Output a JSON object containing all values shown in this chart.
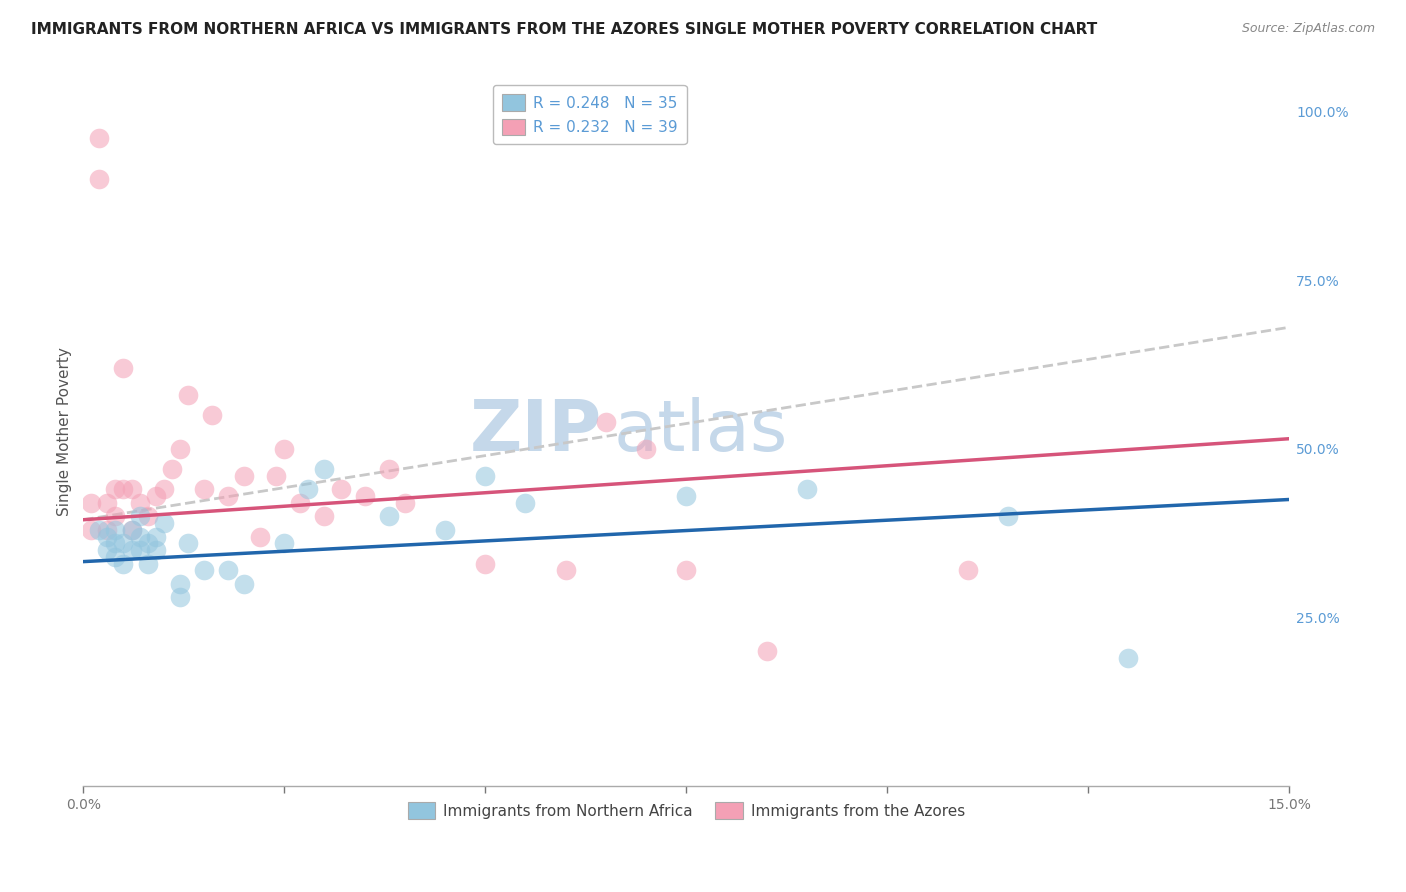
{
  "title": "IMMIGRANTS FROM NORTHERN AFRICA VS IMMIGRANTS FROM THE AZORES SINGLE MOTHER POVERTY CORRELATION CHART",
  "source": "Source: ZipAtlas.com",
  "ylabel": "Single Mother Poverty",
  "xlabel": "",
  "watermark_text": "ZIP",
  "watermark_text2": "atlas",
  "legend_blue_r": "R = 0.248",
  "legend_blue_n": "N = 35",
  "legend_pink_r": "R = 0.232",
  "legend_pink_n": "N = 39",
  "xlim": [
    0.0,
    0.15
  ],
  "ylim": [
    0.0,
    1.05
  ],
  "blue_color": "#92c5de",
  "pink_color": "#f4a0b5",
  "blue_line_color": "#2166ac",
  "pink_line_color": "#d6547a",
  "dash_line_color": "#c8c8c8",
  "background_color": "#ffffff",
  "grid_color": "#d0d0d0",
  "blue_points_x": [
    0.002,
    0.003,
    0.003,
    0.004,
    0.004,
    0.004,
    0.005,
    0.005,
    0.006,
    0.006,
    0.007,
    0.007,
    0.007,
    0.008,
    0.008,
    0.009,
    0.009,
    0.01,
    0.012,
    0.012,
    0.013,
    0.015,
    0.018,
    0.02,
    0.025,
    0.028,
    0.03,
    0.038,
    0.045,
    0.05,
    0.055,
    0.075,
    0.09,
    0.115,
    0.13
  ],
  "blue_points_y": [
    0.38,
    0.37,
    0.35,
    0.38,
    0.36,
    0.34,
    0.36,
    0.33,
    0.38,
    0.35,
    0.4,
    0.37,
    0.35,
    0.36,
    0.33,
    0.37,
    0.35,
    0.39,
    0.3,
    0.28,
    0.36,
    0.32,
    0.32,
    0.3,
    0.36,
    0.44,
    0.47,
    0.4,
    0.38,
    0.46,
    0.42,
    0.43,
    0.44,
    0.4,
    0.19
  ],
  "pink_points_x": [
    0.001,
    0.001,
    0.002,
    0.002,
    0.003,
    0.003,
    0.004,
    0.004,
    0.005,
    0.005,
    0.006,
    0.006,
    0.007,
    0.008,
    0.009,
    0.01,
    0.011,
    0.012,
    0.013,
    0.015,
    0.016,
    0.018,
    0.02,
    0.022,
    0.024,
    0.025,
    0.027,
    0.03,
    0.032,
    0.035,
    0.038,
    0.04,
    0.05,
    0.06,
    0.065,
    0.07,
    0.075,
    0.085,
    0.11
  ],
  "pink_points_y": [
    0.42,
    0.38,
    0.9,
    0.96,
    0.42,
    0.38,
    0.44,
    0.4,
    0.44,
    0.62,
    0.44,
    0.38,
    0.42,
    0.4,
    0.43,
    0.44,
    0.47,
    0.5,
    0.58,
    0.44,
    0.55,
    0.43,
    0.46,
    0.37,
    0.46,
    0.5,
    0.42,
    0.4,
    0.44,
    0.43,
    0.47,
    0.42,
    0.33,
    0.32,
    0.54,
    0.5,
    0.32,
    0.2,
    0.32
  ],
  "blue_trend_y0": 0.333,
  "blue_trend_y1": 0.425,
  "pink_trend_y0": 0.395,
  "pink_trend_y1": 0.515,
  "dash_trend_y0": 0.395,
  "dash_trend_y1": 0.68,
  "title_fontsize": 11,
  "source_fontsize": 9,
  "axis_label_fontsize": 11,
  "tick_fontsize": 10,
  "legend_fontsize": 11,
  "watermark_fontsize_zip": 52,
  "watermark_fontsize_atlas": 52,
  "watermark_color": "#c5d8ea",
  "title_color": "#222222",
  "source_color": "#888888",
  "tick_color": "#777777",
  "ylabel_color": "#555555",
  "right_tick_color": "#5b9bd5"
}
